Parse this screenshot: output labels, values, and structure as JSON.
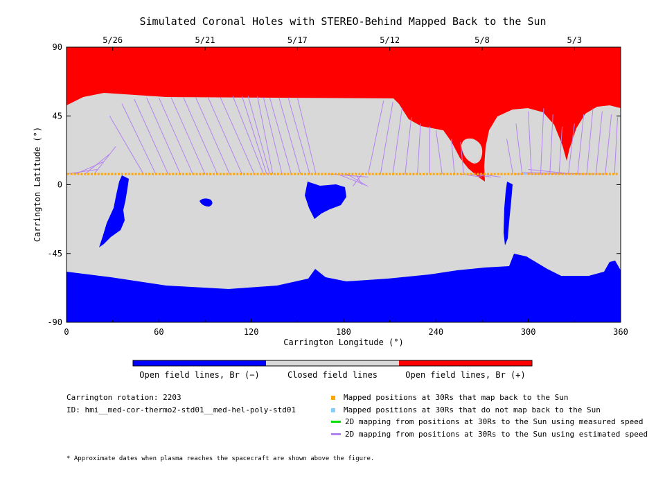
{
  "chart_data": {
    "type": "map",
    "title": "Simulated Coronal Holes with STEREO-Behind Mapped Back to the Sun",
    "xlabel": "Carrington Longitude (°)",
    "ylabel": "Carrington Latitude (°)",
    "xlim": [
      0,
      360
    ],
    "ylim": [
      -90,
      90
    ],
    "x_ticks": [
      "0",
      "60",
      "120",
      "180",
      "240",
      "300",
      "360"
    ],
    "y_ticks": [
      "90",
      "45",
      "0",
      "-45",
      "-90"
    ],
    "top_date_ticks": [
      {
        "label": "5/26",
        "lon": 30
      },
      {
        "label": "5/21",
        "lon": 90
      },
      {
        "label": "5/17",
        "lon": 150
      },
      {
        "label": "5/12",
        "lon": 210
      },
      {
        "label": "5/8",
        "lon": 270
      },
      {
        "label": "5/3",
        "lon": 330
      }
    ],
    "mapped_latitude": 7,
    "colorbar": [
      {
        "label": "Open field lines, Br (−)",
        "color": "#0000ff"
      },
      {
        "label": "Closed field lines",
        "color": "#d8d8d8"
      },
      {
        "label": "Open field lines, Br (+)",
        "color": "#ff0000"
      }
    ]
  },
  "info": {
    "rotation": "Carrington rotation: 2203",
    "id": "ID: hmi__med-cor-thermo2-std01__med-hel-poly-std01"
  },
  "legend": [
    {
      "label": "Mapped positions at 30Rs that map back to the Sun",
      "color": "#ffa500",
      "kind": "square"
    },
    {
      "label": "Mapped positions at 30Rs that do not map back to the Sun",
      "color": "#87cefa",
      "kind": "square"
    },
    {
      "label": "2D mapping from positions at 30Rs to the Sun using measured speed",
      "color": "#00e000",
      "kind": "line"
    },
    {
      "label": "2D mapping from positions at 30Rs to the Sun using estimated speed",
      "color": "#b482f0",
      "kind": "line"
    }
  ],
  "footnote": "* Approximate dates when plasma reaches the spacecraft are shown above the figure."
}
